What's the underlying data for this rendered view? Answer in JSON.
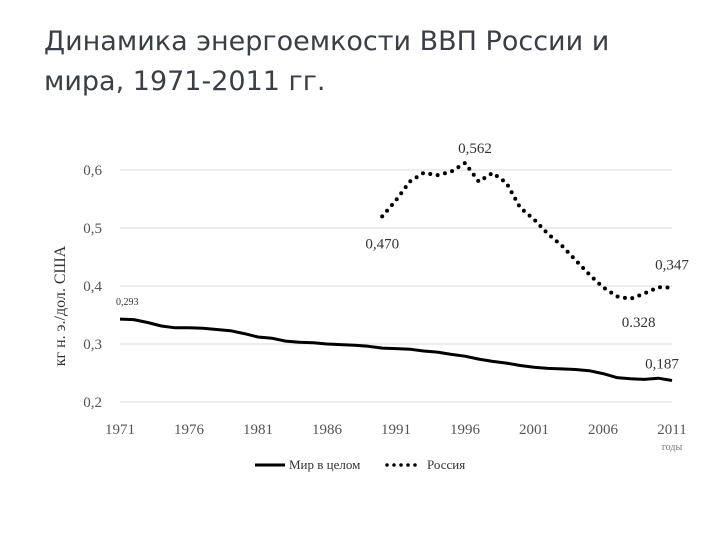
{
  "slide": {
    "title": "Динамика энергоемкости ВВП России и мира, 1971-2011 гг."
  },
  "chart_data": {
    "type": "line",
    "ylabel": "кг н. э./дол. США",
    "x_units": "годы",
    "ylim": [
      0.2,
      0.6
    ],
    "yticks": [
      0.2,
      0.3,
      0.4,
      0.5,
      0.6
    ],
    "ytick_labels": [
      "0,2",
      "0,3",
      "0,4",
      "0,5",
      "0,6"
    ],
    "xlim": [
      1971,
      2011
    ],
    "xticks": [
      1971,
      1976,
      1981,
      1986,
      1991,
      1996,
      2001,
      2006,
      2011
    ],
    "xtick_labels": [
      "1971",
      "1976",
      "1981",
      "1986",
      "1991",
      "1996",
      "2001",
      "2006",
      "2011"
    ],
    "grid": "horizontal",
    "legend_position": "bottom",
    "series": [
      {
        "name": "Мир в целом",
        "style": "solid",
        "color": "#000000",
        "x": [
          1971,
          1972,
          1973,
          1974,
          1975,
          1976,
          1977,
          1978,
          1979,
          1980,
          1981,
          1982,
          1983,
          1984,
          1985,
          1986,
          1987,
          1988,
          1989,
          1990,
          1991,
          1992,
          1993,
          1994,
          1995,
          1996,
          1997,
          1998,
          1999,
          2000,
          2001,
          2002,
          2003,
          2004,
          2005,
          2006,
          2007,
          2008,
          2009,
          2010,
          2011
        ],
        "y": [
          0.343,
          0.342,
          0.337,
          0.331,
          0.328,
          0.328,
          0.327,
          0.325,
          0.323,
          0.318,
          0.312,
          0.31,
          0.305,
          0.303,
          0.302,
          0.3,
          0.299,
          0.298,
          0.296,
          0.293,
          0.292,
          0.291,
          0.288,
          0.286,
          0.282,
          0.279,
          0.274,
          0.27,
          0.267,
          0.263,
          0.26,
          0.258,
          0.257,
          0.256,
          0.254,
          0.249,
          0.242,
          0.24,
          0.239,
          0.241,
          0.237
        ]
      },
      {
        "name": "Россия",
        "style": "dotted",
        "color": "#000000",
        "x": [
          1990,
          1991,
          1992,
          1993,
          1994,
          1995,
          1996,
          1997,
          1998,
          1999,
          2000,
          2001,
          2002,
          2003,
          2004,
          2005,
          2006,
          2007,
          2008,
          2009,
          2010,
          2011
        ],
        "y": [
          0.52,
          0.548,
          0.58,
          0.595,
          0.591,
          0.597,
          0.612,
          0.58,
          0.595,
          0.578,
          0.535,
          0.515,
          0.49,
          0.47,
          0.445,
          0.42,
          0.398,
          0.382,
          0.378,
          0.387,
          0.398,
          0.397
        ]
      }
    ],
    "annotations": [
      {
        "text": "0,293",
        "x": 1971,
        "y": 0.343,
        "size": "small"
      },
      {
        "text": "0,470",
        "x": 1990,
        "y": 0.52
      },
      {
        "text": "0,562",
        "x": 1996,
        "y": 0.612
      },
      {
        "text": "0.328",
        "x": 2008,
        "y": 0.378
      },
      {
        "text": "0,347",
        "x": 2011,
        "y": 0.397
      },
      {
        "text": "0,187",
        "x": 2011,
        "y": 0.237
      }
    ]
  }
}
